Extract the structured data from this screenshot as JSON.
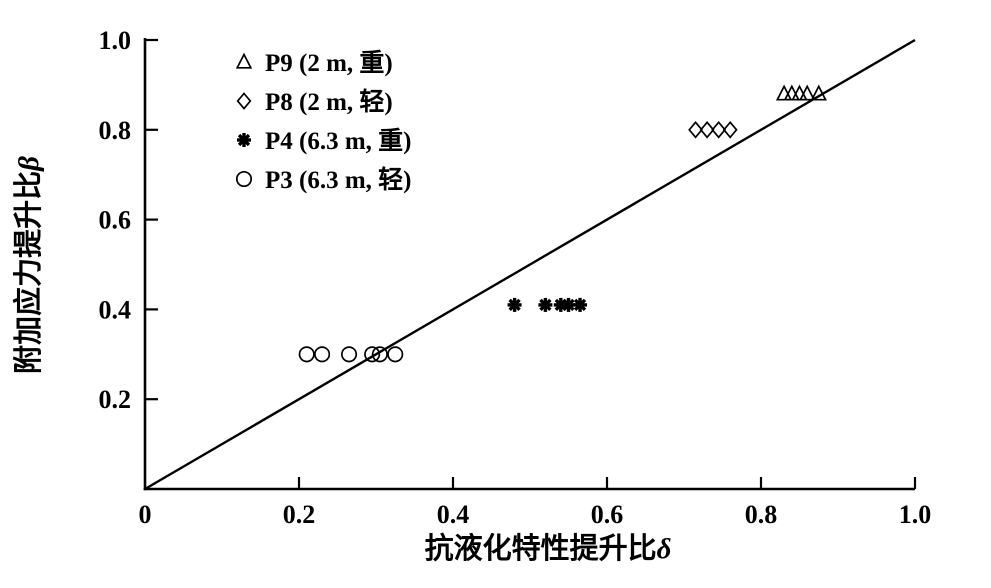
{
  "figure": {
    "background": "#ffffff",
    "ink_color": "#000000"
  },
  "chart_data": {
    "type": "scatter",
    "title": "",
    "xlabel": "抗液化特性提升比",
    "xlabel_symbol": "δ",
    "ylabel": "附加应力提升比",
    "ylabel_symbol": "β",
    "xlim": [
      0,
      1.0
    ],
    "ylim": [
      0,
      1.0
    ],
    "x_ticks": [
      0,
      0.2,
      0.4,
      0.6,
      0.8,
      1.0
    ],
    "x_tick_labels": [
      "0",
      "0.2",
      "0.4",
      "0.6",
      "0.8",
      "1.0"
    ],
    "y_ticks": [
      0.2,
      0.4,
      0.6,
      0.8,
      1.0
    ],
    "y_tick_labels": [
      "0.2",
      "0.4",
      "0.6",
      "0.8",
      "1.0"
    ],
    "grid": false,
    "legend_position": "upper-left-inside",
    "reference_line": {
      "from": [
        0,
        0
      ],
      "to": [
        1.0,
        1.0
      ],
      "style": "solid"
    },
    "series": [
      {
        "name": "P9 (2 m, 重)",
        "marker": "triangle-open",
        "points": [
          [
            0.83,
            0.88
          ],
          [
            0.84,
            0.88
          ],
          [
            0.85,
            0.88
          ],
          [
            0.86,
            0.88
          ],
          [
            0.875,
            0.88
          ]
        ]
      },
      {
        "name": "P8 (2 m, 轻)",
        "marker": "diamond-open",
        "points": [
          [
            0.715,
            0.8
          ],
          [
            0.73,
            0.8
          ],
          [
            0.745,
            0.8
          ],
          [
            0.76,
            0.8
          ]
        ]
      },
      {
        "name": "P4 (6.3 m, 重)",
        "marker": "asterisk",
        "points": [
          [
            0.48,
            0.41
          ],
          [
            0.52,
            0.41
          ],
          [
            0.54,
            0.41
          ],
          [
            0.55,
            0.41
          ],
          [
            0.565,
            0.41
          ]
        ]
      },
      {
        "name": "P3 (6.3 m, 轻)",
        "marker": "circle-open",
        "points": [
          [
            0.21,
            0.3
          ],
          [
            0.23,
            0.3
          ],
          [
            0.265,
            0.3
          ],
          [
            0.295,
            0.3
          ],
          [
            0.305,
            0.3
          ],
          [
            0.325,
            0.3
          ]
        ]
      }
    ]
  }
}
